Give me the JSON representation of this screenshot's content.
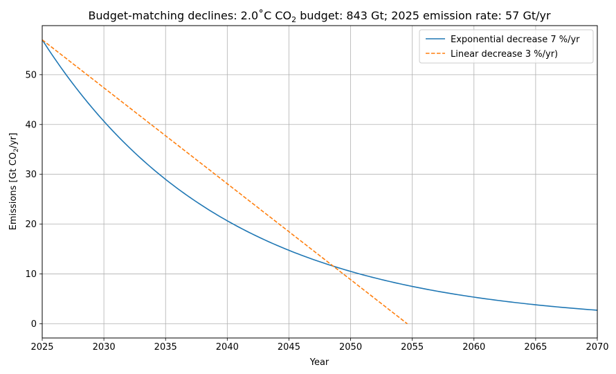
{
  "chart_data": {
    "type": "line",
    "title": {
      "prefix": "Budget-matching declines: 2.0˚C CO",
      "subscript": "2",
      "suffix": " budget: 843 Gt; 2025 emission rate: 57 Gt/yr"
    },
    "xlabel": "Year",
    "ylabel": {
      "prefix": "Emissions [Gt CO",
      "subscript": "2",
      "suffix": "/yr]"
    },
    "xlim": [
      2025,
      2070
    ],
    "ylim": [
      -2.85,
      59.85
    ],
    "xticks": [
      2025,
      2030,
      2035,
      2040,
      2045,
      2050,
      2055,
      2060,
      2065,
      2070
    ],
    "yticks": [
      0,
      10,
      20,
      30,
      40,
      50
    ],
    "grid": true,
    "legend_position": "top-right",
    "series": [
      {
        "name": "Exponential decrease 7 %/yr",
        "style": "solid",
        "color": "#1f77b4",
        "kind": "exponential",
        "start_x": 2025,
        "start_y": 57,
        "rate_per_year": 0.0676,
        "end_x": 2070
      },
      {
        "name": "Linear decrease 3 %/yr)",
        "style": "dashed",
        "color": "#ff7f0e",
        "kind": "linear",
        "x": [
          2025,
          2054.6
        ],
        "y": [
          57,
          0
        ]
      }
    ]
  }
}
